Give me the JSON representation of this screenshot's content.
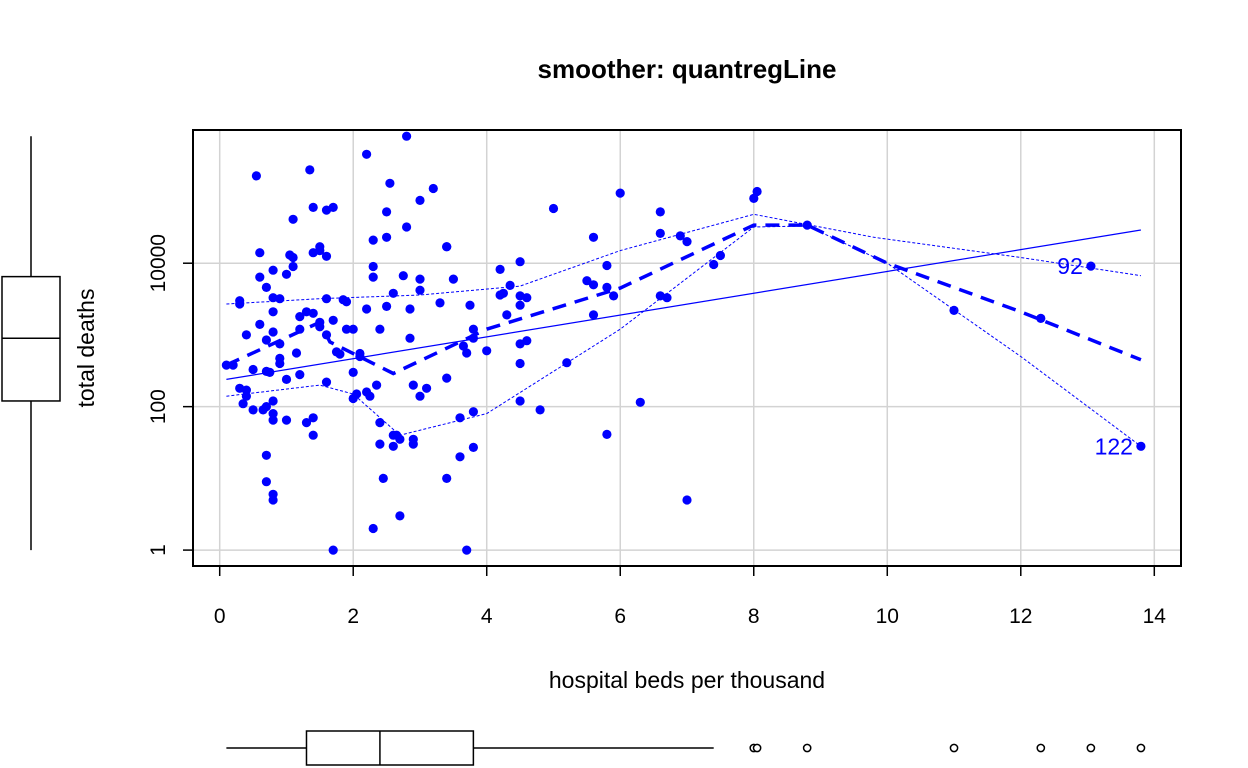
{
  "chart_data": {
    "type": "scatter",
    "title": "smoother: quantregLine",
    "xlabel": "hospital beds per thousand",
    "ylabel": "total deaths",
    "xlim": [
      -0.4,
      14.4
    ],
    "ylim": [
      0.6,
      720000
    ],
    "ylog": true,
    "xticks": [
      0,
      2,
      4,
      6,
      8,
      10,
      12,
      14
    ],
    "xtick_labels": [
      "0",
      "2",
      "4",
      "6",
      "8",
      "10",
      "12",
      "14"
    ],
    "yticks": [
      1,
      100,
      10000
    ],
    "ytick_labels": [
      "1",
      "100",
      "10000"
    ],
    "grid": true,
    "point_color": "#0000ff",
    "grid_color": "#d3d3d3",
    "series": [
      {
        "points": [
          [
            0.1,
            380
          ],
          [
            0.2,
            380
          ],
          [
            0.3,
            3000
          ],
          [
            0.3,
            2700
          ],
          [
            0.3,
            180
          ],
          [
            0.4,
            140
          ],
          [
            0.35,
            110
          ],
          [
            0.4,
            1000
          ],
          [
            0.4,
            170
          ],
          [
            0.5,
            90
          ],
          [
            0.5,
            330
          ],
          [
            0.55,
            165000
          ],
          [
            0.6,
            6400
          ],
          [
            0.6,
            14000
          ],
          [
            0.6,
            1400
          ],
          [
            0.65,
            90
          ],
          [
            0.7,
            21
          ],
          [
            0.7,
            9
          ],
          [
            0.7,
            100
          ],
          [
            0.7,
            4600
          ],
          [
            0.7,
            850
          ],
          [
            0.7,
            310
          ],
          [
            0.75,
            300
          ],
          [
            0.8,
            8000
          ],
          [
            0.8,
            5
          ],
          [
            0.8,
            6
          ],
          [
            0.8,
            80
          ],
          [
            0.8,
            120
          ],
          [
            0.8,
            65
          ],
          [
            0.8,
            2100
          ],
          [
            0.8,
            3300
          ],
          [
            0.8,
            1100
          ],
          [
            0.9,
            3200
          ],
          [
            0.9,
            750
          ],
          [
            0.9,
            470
          ],
          [
            0.9,
            400
          ],
          [
            1.0,
            65
          ],
          [
            1.0,
            240
          ],
          [
            1.05,
            13000
          ],
          [
            1.0,
            7000
          ],
          [
            1.1,
            41000
          ],
          [
            1.1,
            12000
          ],
          [
            1.1,
            9000
          ],
          [
            1.15,
            560
          ],
          [
            1.2,
            1800
          ],
          [
            1.2,
            1200
          ],
          [
            1.2,
            280
          ],
          [
            1.3,
            2100
          ],
          [
            1.3,
            60
          ],
          [
            1.35,
            200000
          ],
          [
            1.4,
            14000
          ],
          [
            1.4,
            60000
          ],
          [
            1.4,
            40
          ],
          [
            1.4,
            70
          ],
          [
            1.4,
            2000
          ],
          [
            1.5,
            1500
          ],
          [
            1.5,
            1300
          ],
          [
            1.5,
            17000
          ],
          [
            1.5,
            15000
          ],
          [
            1.6,
            55000
          ],
          [
            1.6,
            12500
          ],
          [
            1.6,
            3200
          ],
          [
            1.6,
            1000
          ],
          [
            1.6,
            220
          ],
          [
            1.7,
            1600
          ],
          [
            1.7,
            60000
          ],
          [
            1.7,
            1
          ],
          [
            1.75,
            580
          ],
          [
            1.8,
            540
          ],
          [
            1.85,
            3100
          ],
          [
            1.9,
            1200
          ],
          [
            1.9,
            2900
          ],
          [
            2.0,
            1200
          ],
          [
            2.0,
            300
          ],
          [
            2.0,
            130
          ],
          [
            2.05,
            150
          ],
          [
            2.1,
            500
          ],
          [
            2.1,
            550
          ],
          [
            2.2,
            2300
          ],
          [
            2.2,
            330000
          ],
          [
            2.2,
            160
          ],
          [
            2.25,
            140
          ],
          [
            2.3,
            21000
          ],
          [
            2.3,
            9000
          ],
          [
            2.3,
            6400
          ],
          [
            2.3,
            2
          ],
          [
            2.35,
            200
          ],
          [
            2.4,
            1200
          ],
          [
            2.4,
            60
          ],
          [
            2.4,
            30
          ],
          [
            2.45,
            10
          ],
          [
            2.5,
            52000
          ],
          [
            2.5,
            23000
          ],
          [
            2.5,
            2500
          ],
          [
            2.55,
            130000
          ],
          [
            2.6,
            3800
          ],
          [
            2.6,
            40
          ],
          [
            2.6,
            28
          ],
          [
            2.65,
            40
          ],
          [
            2.7,
            35
          ],
          [
            2.7,
            3
          ],
          [
            2.75,
            6700
          ],
          [
            2.8,
            590000
          ],
          [
            2.8,
            32000
          ],
          [
            2.85,
            900
          ],
          [
            2.85,
            2300
          ],
          [
            2.9,
            200
          ],
          [
            2.9,
            35
          ],
          [
            2.9,
            30
          ],
          [
            3.0,
            6000
          ],
          [
            3.0,
            4200
          ],
          [
            3.0,
            75000
          ],
          [
            3.0,
            140
          ],
          [
            3.1,
            180
          ],
          [
            3.2,
            110000
          ],
          [
            3.3,
            2800
          ],
          [
            3.4,
            17000
          ],
          [
            3.4,
            17000
          ],
          [
            3.4,
            250
          ],
          [
            3.4,
            10
          ],
          [
            3.5,
            6000
          ],
          [
            3.6,
            70
          ],
          [
            3.6,
            20
          ],
          [
            3.65,
            700
          ],
          [
            3.7,
            560
          ],
          [
            3.75,
            2600
          ],
          [
            3.7,
            1
          ],
          [
            3.8,
            1200
          ],
          [
            3.8,
            900
          ],
          [
            3.8,
            85
          ],
          [
            3.8,
            27
          ],
          [
            4.0,
            600
          ],
          [
            4.2,
            8200
          ],
          [
            4.2,
            3600
          ],
          [
            4.25,
            3800
          ],
          [
            4.3,
            1900
          ],
          [
            4.35,
            4900
          ],
          [
            4.5,
            10500
          ],
          [
            4.5,
            2600
          ],
          [
            4.5,
            3500
          ],
          [
            4.5,
            750
          ],
          [
            4.5,
            400
          ],
          [
            4.5,
            120
          ],
          [
            4.6,
            3300
          ],
          [
            4.6,
            830
          ],
          [
            4.8,
            90
          ],
          [
            5.0,
            58000
          ],
          [
            5.2,
            410
          ],
          [
            5.5,
            5700
          ],
          [
            5.6,
            5000
          ],
          [
            5.6,
            1900
          ],
          [
            5.6,
            23000
          ],
          [
            5.8,
            4600
          ],
          [
            5.8,
            9300
          ],
          [
            5.8,
            41
          ],
          [
            5.9,
            3500
          ],
          [
            6.0,
            95000
          ],
          [
            6.3,
            115
          ],
          [
            6.6,
            26000
          ],
          [
            6.6,
            3500
          ],
          [
            6.6,
            52000
          ],
          [
            6.7,
            3300
          ],
          [
            6.9,
            24000
          ],
          [
            7.0,
            5
          ],
          [
            7.0,
            20000
          ],
          [
            7.4,
            9600
          ],
          [
            7.5,
            12800
          ],
          [
            8.0,
            80000
          ],
          [
            8.05,
            100000
          ],
          [
            8.8,
            34000
          ],
          [
            11.0,
            2200
          ],
          [
            12.3,
            1700
          ],
          [
            13.05,
            9100
          ],
          [
            13.8,
            28
          ]
        ]
      }
    ],
    "lines": [
      {
        "name": "linear-fit",
        "points": [
          [
            0.1,
            240
          ],
          [
            13.8,
            29000
          ]
        ]
      },
      {
        "name": "quantreg-median",
        "points": [
          [
            0.1,
            380
          ],
          [
            1.5,
            1500
          ],
          [
            1.65,
            800
          ],
          [
            2.6,
            290
          ],
          [
            4.0,
            1200
          ],
          [
            6.0,
            4500
          ],
          [
            8.0,
            34000
          ],
          [
            8.8,
            34000
          ],
          [
            10.0,
            10000
          ],
          [
            12.0,
            2100
          ],
          [
            13.8,
            450
          ]
        ]
      },
      {
        "name": "quantreg-upper",
        "points": [
          [
            0.1,
            2700
          ],
          [
            1.5,
            3200
          ],
          [
            3.0,
            3600
          ],
          [
            4.5,
            4800
          ],
          [
            6.0,
            15000
          ],
          [
            8.0,
            48000
          ],
          [
            9.8,
            23000
          ],
          [
            12.0,
            12000
          ],
          [
            13.8,
            6700
          ]
        ]
      },
      {
        "name": "quantreg-lower",
        "points": [
          [
            0.1,
            140
          ],
          [
            1.5,
            200
          ],
          [
            2.0,
            150
          ],
          [
            2.7,
            40
          ],
          [
            4.0,
            80
          ],
          [
            6.0,
            1200
          ],
          [
            8.0,
            32000
          ],
          [
            8.8,
            33000
          ],
          [
            10.0,
            10000
          ],
          [
            12.0,
            500
          ],
          [
            13.8,
            28
          ]
        ]
      }
    ],
    "point_labels": [
      {
        "text": "92",
        "x": 13.05,
        "y": 9100
      },
      {
        "text": "122",
        "x": 13.8,
        "y": 28
      }
    ],
    "x_boxplot": {
      "whisker_low": 0.1,
      "q1": 1.3,
      "median": 2.4,
      "q3": 3.8,
      "whisker_high": 7.4,
      "outliers": [
        8.0,
        8.05,
        8.8,
        11.0,
        12.3,
        13.05,
        13.8
      ]
    },
    "y_boxplot": {
      "whisker_low": 1,
      "q1": 120,
      "median": 900,
      "q3": 6500,
      "whisker_high": 590000
    }
  }
}
